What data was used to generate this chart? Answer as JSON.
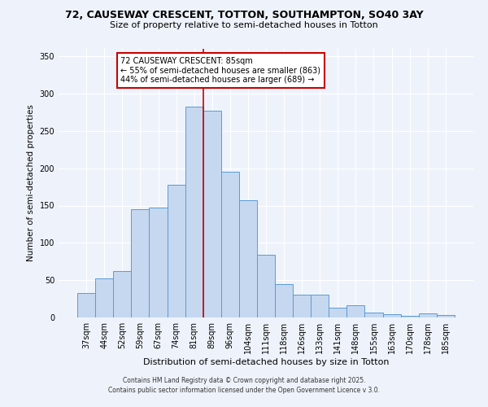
{
  "title": "72, CAUSEWAY CRESCENT, TOTTON, SOUTHAMPTON, SO40 3AY",
  "subtitle": "Size of property relative to semi-detached houses in Totton",
  "xlabel": "Distribution of semi-detached houses by size in Totton",
  "ylabel": "Number of semi-detached properties",
  "categories": [
    "37sqm",
    "44sqm",
    "52sqm",
    "59sqm",
    "67sqm",
    "74sqm",
    "81sqm",
    "89sqm",
    "96sqm",
    "104sqm",
    "111sqm",
    "118sqm",
    "126sqm",
    "133sqm",
    "141sqm",
    "148sqm",
    "155sqm",
    "163sqm",
    "170sqm",
    "178sqm",
    "185sqm"
  ],
  "values": [
    33,
    52,
    62,
    145,
    147,
    178,
    283,
    277,
    195,
    157,
    84,
    45,
    31,
    31,
    13,
    16,
    7,
    4,
    2,
    5,
    3
  ],
  "bar_color": "#c5d8f0",
  "bar_edge_color": "#5b9bd5",
  "vline_x_index": 6.5,
  "vline_color": "#cc0000",
  "annotation_title": "72 CAUSEWAY CRESCENT: 85sqm",
  "annotation_line2": "← 55% of semi-detached houses are smaller (863)",
  "annotation_line3": "44% of semi-detached houses are larger (689) →",
  "annotation_box_color": "#ffffff",
  "annotation_box_edge": "#cc0000",
  "footnote1": "Contains HM Land Registry data © Crown copyright and database right 2025.",
  "footnote2": "Contains public sector information licensed under the Open Government Licence v 3.0.",
  "background_color": "#eef3fb",
  "ylim": [
    0,
    360
  ],
  "yticks": [
    0,
    50,
    100,
    150,
    200,
    250,
    300,
    350
  ],
  "title_fontsize": 9,
  "subtitle_fontsize": 8,
  "annotation_fontsize": 7,
  "xlabel_fontsize": 8,
  "ylabel_fontsize": 7.5,
  "tick_fontsize": 7,
  "footnote_fontsize": 5.5
}
